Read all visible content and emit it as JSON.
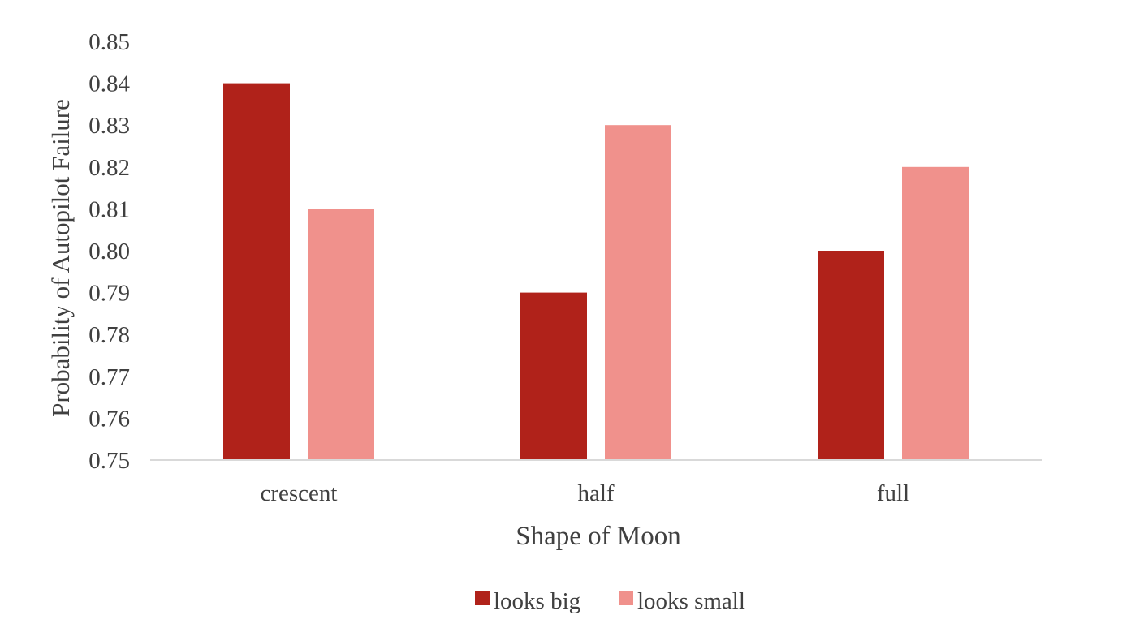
{
  "chart_data": {
    "type": "bar",
    "categories": [
      "crescent",
      "half",
      "full"
    ],
    "series": [
      {
        "name": "looks big",
        "values": [
          0.84,
          0.79,
          0.8
        ],
        "color": "#b0221a"
      },
      {
        "name": "looks small",
        "values": [
          0.81,
          0.83,
          0.82
        ],
        "color": "#f0918c"
      }
    ],
    "xlabel": "Shape of Moon",
    "ylabel": "Probability of Autopilot Failure",
    "ylim": [
      0.75,
      0.85
    ],
    "yticks": [
      "0.85",
      "0.84",
      "0.83",
      "0.82",
      "0.81",
      "0.80",
      "0.79",
      "0.78",
      "0.77",
      "0.76",
      "0.75"
    ],
    "grid": false,
    "legend": "bottom",
    "axis_color": "#d9d9d9"
  }
}
